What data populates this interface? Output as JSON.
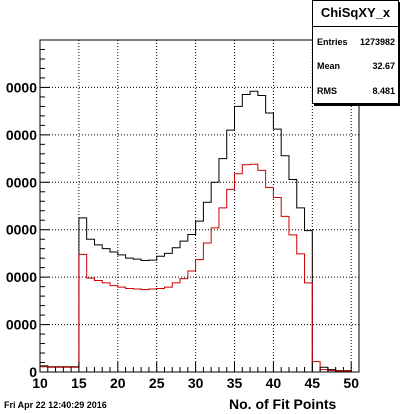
{
  "stats": {
    "title": "ChiSqXY_x",
    "rows": [
      {
        "label": "Entries",
        "value": "1273982"
      },
      {
        "label": "Mean",
        "value": "32.67"
      },
      {
        "label": "RMS",
        "value": "8.481"
      }
    ]
  },
  "footer": "Fri Apr 22 12:40:29 2016",
  "chart_data": {
    "type": "histogram",
    "title": "",
    "xlabel": "No. of Fit Points",
    "ylabel": "",
    "xlim": [
      10,
      51
    ],
    "ylim": [
      0,
      70000
    ],
    "xticks": [
      10,
      15,
      20,
      25,
      30,
      35,
      40,
      45,
      50
    ],
    "yticks": [
      0,
      10000,
      20000,
      30000,
      40000,
      50000,
      60000
    ],
    "ytick_labels": [
      "0",
      "0000",
      "0000",
      "0000",
      "0000",
      "0000",
      "0000"
    ],
    "grid": true,
    "bin_edges": [
      10,
      11,
      12,
      13,
      14,
      15,
      16,
      17,
      18,
      19,
      20,
      21,
      22,
      23,
      24,
      25,
      26,
      27,
      28,
      29,
      30,
      31,
      32,
      33,
      34,
      35,
      36,
      37,
      38,
      39,
      40,
      41,
      42,
      43,
      44,
      45,
      46,
      47,
      48,
      49,
      50,
      51
    ],
    "series": [
      {
        "color": "#000000",
        "values": [
          1300,
          1100,
          1100,
          1100,
          1100,
          32500,
          28000,
          26800,
          26000,
          25300,
          24700,
          24000,
          23800,
          23500,
          23600,
          24400,
          25000,
          26200,
          27600,
          29000,
          31800,
          35800,
          40000,
          45000,
          51000,
          56000,
          58500,
          59200,
          58300,
          54600,
          51200,
          45600,
          40600,
          34600,
          29800,
          0,
          1000,
          500,
          300,
          300,
          0
        ]
      },
      {
        "color": "#cc0000",
        "values": [
          1100,
          1000,
          1000,
          1000,
          1000,
          24800,
          19800,
          19300,
          18800,
          18200,
          17900,
          17600,
          17500,
          17400,
          17500,
          17600,
          17900,
          18800,
          19700,
          21300,
          23700,
          27200,
          30400,
          34600,
          38500,
          41800,
          43700,
          43800,
          42500,
          38900,
          36800,
          32800,
          28900,
          24900,
          18800,
          2200,
          500,
          300,
          200,
          200,
          0
        ]
      }
    ]
  }
}
